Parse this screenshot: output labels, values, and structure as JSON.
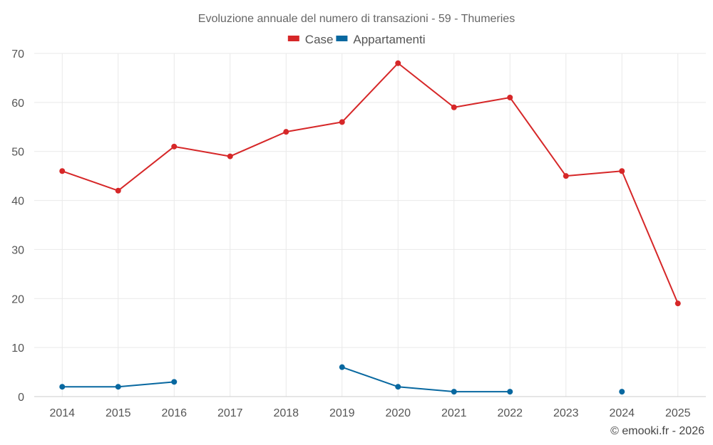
{
  "chart_data": {
    "type": "line",
    "title": "Evoluzione annuale del numero di transazioni - 59 - Thumeries",
    "categories": [
      "2014",
      "2015",
      "2016",
      "2017",
      "2018",
      "2019",
      "2020",
      "2021",
      "2022",
      "2023",
      "2024",
      "2025"
    ],
    "series": [
      {
        "name": "Case",
        "color": "#d62728",
        "values": [
          46,
          42,
          51,
          49,
          54,
          56,
          68,
          59,
          61,
          45,
          46,
          19
        ]
      },
      {
        "name": "Appartamenti",
        "color": "#0868a0",
        "values": [
          2,
          2,
          3,
          null,
          null,
          6,
          2,
          1,
          1,
          null,
          1,
          null
        ]
      }
    ],
    "y_ticks": [
      0,
      10,
      20,
      30,
      40,
      50,
      60,
      70
    ],
    "ylim": [
      0,
      70
    ],
    "xlabel": "",
    "ylabel": "",
    "grid": true,
    "legend": "top-center"
  },
  "credit": "© emooki.fr - 2026"
}
